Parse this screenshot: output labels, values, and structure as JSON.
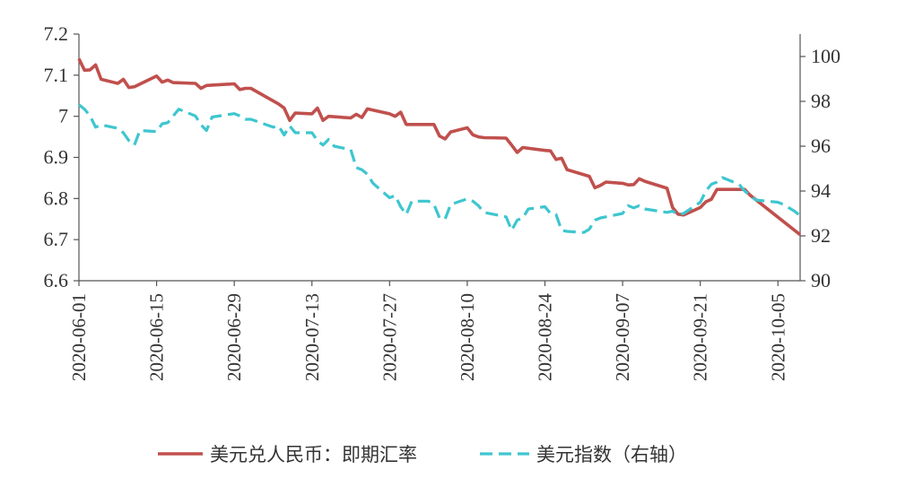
{
  "chart_data": {
    "type": "line",
    "title": "",
    "xlabel": "",
    "ylabel": "",
    "y2label": "",
    "x_range": [
      "2020-06-01",
      "2020-10-09"
    ],
    "xticks": [
      "2020-06-01",
      "2020-06-15",
      "2020-06-29",
      "2020-07-13",
      "2020-07-27",
      "2020-08-10",
      "2020-08-24",
      "2020-09-07",
      "2020-09-21",
      "2020-10-05"
    ],
    "ylim": [
      6.6,
      7.2
    ],
    "yticks": [
      "6.6",
      "6.7",
      "6.8",
      "6.9",
      "7",
      "7.1",
      "7.2"
    ],
    "y2lim": [
      90,
      101
    ],
    "y2ticks": [
      "90",
      "92",
      "94",
      "96",
      "98",
      "100"
    ],
    "grid": false,
    "legend_position": "bottom",
    "series": [
      {
        "name": "美元兑人民币：即期汇率",
        "axis": "left",
        "color": "#c0504d",
        "style": "solid",
        "points": [
          [
            "2020-06-01",
            7.14
          ],
          [
            "2020-06-02",
            7.112
          ],
          [
            "2020-06-03",
            7.113
          ],
          [
            "2020-06-04",
            7.125
          ],
          [
            "2020-06-05",
            7.09
          ],
          [
            "2020-06-08",
            7.08
          ],
          [
            "2020-06-09",
            7.09
          ],
          [
            "2020-06-10",
            7.07
          ],
          [
            "2020-06-11",
            7.072
          ],
          [
            "2020-06-15",
            7.098
          ],
          [
            "2020-06-16",
            7.083
          ],
          [
            "2020-06-17",
            7.088
          ],
          [
            "2020-06-18",
            7.082
          ],
          [
            "2020-06-22",
            7.08
          ],
          [
            "2020-06-23",
            7.068
          ],
          [
            "2020-06-24",
            7.075
          ],
          [
            "2020-06-29",
            7.079
          ],
          [
            "2020-06-30",
            7.065
          ],
          [
            "2020-07-01",
            7.068
          ],
          [
            "2020-07-02",
            7.068
          ],
          [
            "2020-07-07",
            7.03
          ],
          [
            "2020-07-08",
            7.02
          ],
          [
            "2020-07-09",
            6.99
          ],
          [
            "2020-07-10",
            7.008
          ],
          [
            "2020-07-13",
            7.006
          ],
          [
            "2020-07-14",
            7.02
          ],
          [
            "2020-07-15",
            6.99
          ],
          [
            "2020-07-16",
            7.0
          ],
          [
            "2020-07-20",
            6.996
          ],
          [
            "2020-07-21",
            7.005
          ],
          [
            "2020-07-22",
            6.997
          ],
          [
            "2020-07-23",
            7.018
          ],
          [
            "2020-07-27",
            7.006
          ],
          [
            "2020-07-28",
            7.0
          ],
          [
            "2020-07-29",
            7.01
          ],
          [
            "2020-07-30",
            6.98
          ],
          [
            "2020-08-04",
            6.98
          ],
          [
            "2020-08-05",
            6.952
          ],
          [
            "2020-08-06",
            6.945
          ],
          [
            "2020-08-07",
            6.962
          ],
          [
            "2020-08-10",
            6.972
          ],
          [
            "2020-08-11",
            6.955
          ],
          [
            "2020-08-12",
            6.95
          ],
          [
            "2020-08-13",
            6.948
          ],
          [
            "2020-08-17",
            6.947
          ],
          [
            "2020-08-18",
            6.93
          ],
          [
            "2020-08-19",
            6.912
          ],
          [
            "2020-08-20",
            6.924
          ],
          [
            "2020-08-24",
            6.917
          ],
          [
            "2020-08-25",
            6.916
          ],
          [
            "2020-08-26",
            6.895
          ],
          [
            "2020-08-27",
            6.898
          ],
          [
            "2020-08-28",
            6.87
          ],
          [
            "2020-09-01",
            6.854
          ],
          [
            "2020-09-02",
            6.826
          ],
          [
            "2020-09-03",
            6.832
          ],
          [
            "2020-09-04",
            6.84
          ],
          [
            "2020-09-07",
            6.837
          ],
          [
            "2020-09-08",
            6.833
          ],
          [
            "2020-09-09",
            6.834
          ],
          [
            "2020-09-10",
            6.848
          ],
          [
            "2020-09-11",
            6.842
          ],
          [
            "2020-09-15",
            6.825
          ],
          [
            "2020-09-16",
            6.778
          ],
          [
            "2020-09-17",
            6.762
          ],
          [
            "2020-09-18",
            6.76
          ],
          [
            "2020-09-21",
            6.778
          ],
          [
            "2020-09-22",
            6.792
          ],
          [
            "2020-09-23",
            6.798
          ],
          [
            "2020-09-24",
            6.822
          ],
          [
            "2020-09-25",
            6.822
          ],
          [
            "2020-09-29",
            6.822
          ],
          [
            "2020-09-30",
            6.808
          ],
          [
            "2020-10-09",
            6.712
          ]
        ]
      },
      {
        "name": "美元指数（右轴）",
        "axis": "right",
        "color": "#3ec6cf",
        "style": "dashed",
        "points": [
          [
            "2020-06-01",
            97.85
          ],
          [
            "2020-06-02",
            97.65
          ],
          [
            "2020-06-03",
            97.35
          ],
          [
            "2020-06-04",
            96.85
          ],
          [
            "2020-06-05",
            96.95
          ],
          [
            "2020-06-08",
            96.8
          ],
          [
            "2020-06-09",
            96.6
          ],
          [
            "2020-06-10",
            96.25
          ],
          [
            "2020-06-11",
            96.05
          ],
          [
            "2020-06-12",
            96.7
          ],
          [
            "2020-06-15",
            96.65
          ],
          [
            "2020-06-16",
            97.0
          ],
          [
            "2020-06-17",
            97.05
          ],
          [
            "2020-06-18",
            97.35
          ],
          [
            "2020-06-19",
            97.65
          ],
          [
            "2020-06-22",
            97.35
          ],
          [
            "2020-06-23",
            96.95
          ],
          [
            "2020-06-24",
            96.7
          ],
          [
            "2020-06-25",
            97.3
          ],
          [
            "2020-06-29",
            97.45
          ],
          [
            "2020-06-30",
            97.35
          ],
          [
            "2020-07-01",
            97.2
          ],
          [
            "2020-07-02",
            97.2
          ],
          [
            "2020-07-06",
            96.85
          ],
          [
            "2020-07-07",
            96.9
          ],
          [
            "2020-07-08",
            96.5
          ],
          [
            "2020-07-09",
            96.9
          ],
          [
            "2020-07-10",
            96.6
          ],
          [
            "2020-07-13",
            96.6
          ],
          [
            "2020-07-14",
            96.25
          ],
          [
            "2020-07-15",
            96.05
          ],
          [
            "2020-07-16",
            96.3
          ],
          [
            "2020-07-17",
            96.0
          ],
          [
            "2020-07-20",
            95.85
          ],
          [
            "2020-07-21",
            95.05
          ],
          [
            "2020-07-22",
            94.95
          ],
          [
            "2020-07-23",
            94.75
          ],
          [
            "2020-07-24",
            94.35
          ],
          [
            "2020-07-27",
            93.7
          ],
          [
            "2020-07-28",
            93.8
          ],
          [
            "2020-07-29",
            93.3
          ],
          [
            "2020-07-30",
            92.95
          ],
          [
            "2020-07-31",
            93.55
          ],
          [
            "2020-08-03",
            93.55
          ],
          [
            "2020-08-04",
            93.4
          ],
          [
            "2020-08-05",
            92.8
          ],
          [
            "2020-08-06",
            92.75
          ],
          [
            "2020-08-07",
            93.4
          ],
          [
            "2020-08-10",
            93.65
          ],
          [
            "2020-08-11",
            93.55
          ],
          [
            "2020-08-12",
            93.35
          ],
          [
            "2020-08-13",
            93.05
          ],
          [
            "2020-08-17",
            92.85
          ],
          [
            "2020-08-18",
            92.25
          ],
          [
            "2020-08-19",
            92.7
          ],
          [
            "2020-08-20",
            92.8
          ],
          [
            "2020-08-21",
            93.2
          ],
          [
            "2020-08-24",
            93.3
          ],
          [
            "2020-08-25",
            93.0
          ],
          [
            "2020-08-26",
            92.95
          ],
          [
            "2020-08-27",
            92.25
          ],
          [
            "2020-08-28",
            92.2
          ],
          [
            "2020-08-31",
            92.15
          ],
          [
            "2020-09-01",
            92.3
          ],
          [
            "2020-09-02",
            92.7
          ],
          [
            "2020-09-03",
            92.8
          ],
          [
            "2020-09-07",
            93.0
          ],
          [
            "2020-09-08",
            93.35
          ],
          [
            "2020-09-09",
            93.25
          ],
          [
            "2020-09-10",
            93.35
          ],
          [
            "2020-09-11",
            93.2
          ],
          [
            "2020-09-15",
            93.05
          ],
          [
            "2020-09-16",
            93.1
          ],
          [
            "2020-09-17",
            92.95
          ],
          [
            "2020-09-18",
            93.0
          ],
          [
            "2020-09-21",
            93.5
          ],
          [
            "2020-09-22",
            94.0
          ],
          [
            "2020-09-23",
            94.3
          ],
          [
            "2020-09-24",
            94.4
          ],
          [
            "2020-09-25",
            94.6
          ],
          [
            "2020-09-28",
            94.3
          ],
          [
            "2020-09-29",
            94.0
          ],
          [
            "2020-09-30",
            93.8
          ],
          [
            "2020-10-01",
            93.6
          ],
          [
            "2020-10-05",
            93.5
          ],
          [
            "2020-10-06",
            93.4
          ],
          [
            "2020-10-07",
            93.25
          ],
          [
            "2020-10-08",
            93.1
          ],
          [
            "2020-10-09",
            92.9
          ]
        ]
      }
    ]
  }
}
